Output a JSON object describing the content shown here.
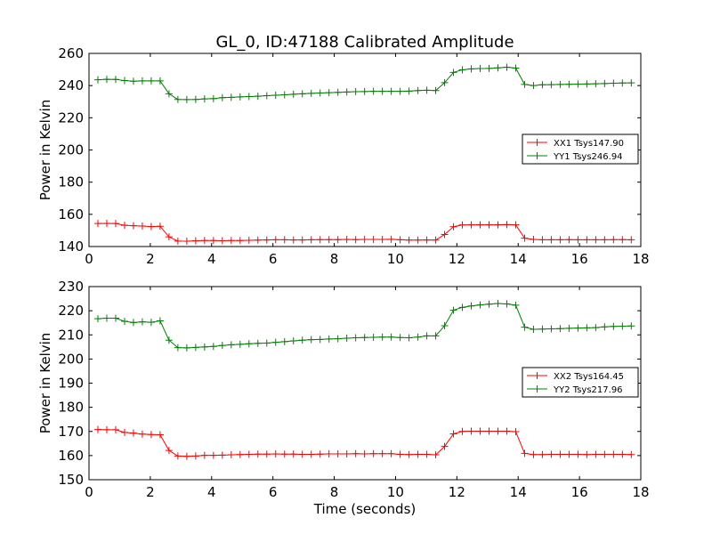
{
  "chart_data": [
    {
      "type": "line",
      "title": "GL_0, ID:47188 Calibrated Amplitude",
      "xlabel": "",
      "ylabel": "Power in Kelvin",
      "xlim": [
        0,
        18
      ],
      "ylim": [
        140,
        260
      ],
      "xticks": [
        "0",
        "2",
        "4",
        "6",
        "8",
        "10",
        "12",
        "14",
        "16",
        "18"
      ],
      "yticks": [
        "140",
        "160",
        "180",
        "200",
        "220",
        "240",
        "260"
      ],
      "grid": false,
      "legend_position": "right",
      "x": [
        0.29,
        0.58,
        0.87,
        1.16,
        1.45,
        1.74,
        2.03,
        2.32,
        2.61,
        2.9,
        3.19,
        3.48,
        3.77,
        4.06,
        4.35,
        4.64,
        4.93,
        5.22,
        5.51,
        5.8,
        6.09,
        6.38,
        6.67,
        6.96,
        7.25,
        7.54,
        7.83,
        8.12,
        8.41,
        8.7,
        8.99,
        9.28,
        9.57,
        9.86,
        10.15,
        10.44,
        10.73,
        11.02,
        11.31,
        11.6,
        11.89,
        12.18,
        12.47,
        12.76,
        13.05,
        13.34,
        13.63,
        13.92,
        14.21,
        14.5,
        14.79,
        15.08,
        15.37,
        15.66,
        15.95,
        16.24,
        16.53,
        16.82,
        17.11,
        17.4,
        17.69
      ],
      "series": [
        {
          "name": "XX1 Tsys147.90",
          "color": "#ff0000",
          "values": [
            154.3,
            154.4,
            154.3,
            153.2,
            152.9,
            152.7,
            152.4,
            152.6,
            146.0,
            143.4,
            143.3,
            143.5,
            143.7,
            143.7,
            143.6,
            143.7,
            143.7,
            143.9,
            144.0,
            144.1,
            144.2,
            144.2,
            144.1,
            144.1,
            144.2,
            144.3,
            144.3,
            144.3,
            144.4,
            144.3,
            144.4,
            144.4,
            144.4,
            144.5,
            144.2,
            144.0,
            144.0,
            144.1,
            144.0,
            147.5,
            152.3,
            153.4,
            153.5,
            153.5,
            153.5,
            153.5,
            153.6,
            153.5,
            145.2,
            144.4,
            144.2,
            144.2,
            144.2,
            144.3,
            144.2,
            144.2,
            144.2,
            144.2,
            144.3,
            144.3,
            144.2
          ]
        },
        {
          "name": "YY1 Tsys246.94",
          "color": "#008000",
          "values": [
            243.6,
            243.9,
            243.8,
            243.1,
            242.7,
            242.9,
            242.9,
            242.9,
            234.9,
            231.4,
            231.3,
            231.4,
            231.7,
            231.9,
            232.5,
            232.7,
            233.0,
            233.2,
            233.4,
            233.7,
            234.0,
            234.3,
            234.6,
            234.9,
            235.2,
            235.4,
            235.6,
            235.8,
            236.0,
            236.2,
            236.3,
            236.4,
            236.4,
            236.4,
            236.4,
            236.6,
            236.9,
            237.1,
            236.9,
            241.8,
            248.2,
            249.8,
            250.4,
            250.6,
            250.7,
            251.0,
            251.4,
            250.9,
            240.7,
            240.0,
            240.5,
            240.6,
            240.7,
            240.8,
            240.9,
            241.0,
            241.1,
            241.3,
            241.5,
            241.6,
            241.7
          ]
        }
      ]
    },
    {
      "type": "line",
      "title": "",
      "xlabel": "Time (seconds)",
      "ylabel": "Power in Kelvin",
      "xlim": [
        0,
        18
      ],
      "ylim": [
        150,
        230
      ],
      "xticks": [
        "0",
        "2",
        "4",
        "6",
        "8",
        "10",
        "12",
        "14",
        "16",
        "18"
      ],
      "yticks": [
        "150",
        "160",
        "170",
        "180",
        "190",
        "200",
        "210",
        "220",
        "230"
      ],
      "grid": false,
      "legend_position": "right",
      "x": [
        0.29,
        0.58,
        0.87,
        1.16,
        1.45,
        1.74,
        2.03,
        2.32,
        2.61,
        2.9,
        3.19,
        3.48,
        3.77,
        4.06,
        4.35,
        4.64,
        4.93,
        5.22,
        5.51,
        5.8,
        6.09,
        6.38,
        6.67,
        6.96,
        7.25,
        7.54,
        7.83,
        8.12,
        8.41,
        8.7,
        8.99,
        9.28,
        9.57,
        9.86,
        10.15,
        10.44,
        10.73,
        11.02,
        11.31,
        11.6,
        11.89,
        12.18,
        12.47,
        12.76,
        13.05,
        13.34,
        13.63,
        13.92,
        14.21,
        14.5,
        14.79,
        15.08,
        15.37,
        15.66,
        15.95,
        16.24,
        16.53,
        16.82,
        17.11,
        17.4,
        17.69
      ],
      "series": [
        {
          "name": "XX2 Tsys164.45",
          "color": "#ff0000",
          "values": [
            170.8,
            170.7,
            170.7,
            169.6,
            169.3,
            168.9,
            168.7,
            168.6,
            162.1,
            159.8,
            159.7,
            159.8,
            160.1,
            160.1,
            160.2,
            160.3,
            160.4,
            160.5,
            160.6,
            160.6,
            160.7,
            160.6,
            160.6,
            160.5,
            160.5,
            160.6,
            160.7,
            160.7,
            160.7,
            160.8,
            160.7,
            160.8,
            160.8,
            160.8,
            160.5,
            160.4,
            160.5,
            160.5,
            160.3,
            163.8,
            169.0,
            170.0,
            170.1,
            170.1,
            170.1,
            170.1,
            170.1,
            169.9,
            160.9,
            160.4,
            160.4,
            160.5,
            160.5,
            160.5,
            160.5,
            160.4,
            160.5,
            160.5,
            160.5,
            160.5,
            160.4
          ]
        },
        {
          "name": "YY2 Tsys217.96",
          "color": "#008000",
          "values": [
            216.7,
            216.9,
            216.9,
            215.6,
            215.1,
            215.4,
            215.2,
            215.8,
            207.8,
            204.7,
            204.6,
            204.8,
            205.0,
            205.2,
            205.6,
            205.9,
            206.1,
            206.3,
            206.5,
            206.6,
            206.9,
            207.2,
            207.5,
            207.8,
            208.0,
            208.1,
            208.3,
            208.4,
            208.6,
            208.8,
            208.9,
            209.0,
            209.1,
            209.1,
            208.9,
            208.8,
            209.1,
            209.6,
            209.6,
            213.8,
            220.2,
            221.4,
            222.0,
            222.4,
            222.7,
            223.0,
            222.8,
            222.3,
            213.2,
            212.3,
            212.4,
            212.5,
            212.6,
            212.7,
            212.8,
            212.9,
            213.0,
            213.3,
            213.5,
            213.6,
            213.7
          ]
        }
      ]
    }
  ]
}
